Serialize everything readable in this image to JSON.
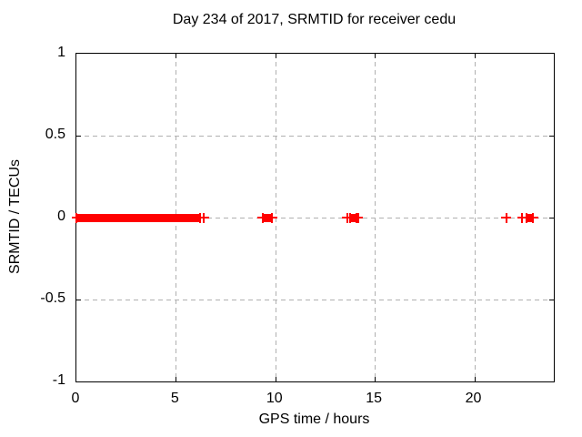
{
  "chart_data": {
    "type": "scatter",
    "title": "Day 234 of 2017, SRMTID for receiver cedu",
    "xlabel": "GPS time / hours",
    "ylabel": "SRMTID / TECUs",
    "xlim": [
      0,
      24
    ],
    "ylim": [
      -1,
      1
    ],
    "grid": true,
    "legend": "none",
    "grid_color": "#b0b0b0",
    "axis_color": "#000000",
    "background_color": "#ffffff",
    "xticks": [
      {
        "value": 0,
        "label": "0"
      },
      {
        "value": 5,
        "label": "5"
      },
      {
        "value": 10,
        "label": "10"
      },
      {
        "value": 15,
        "label": "15"
      },
      {
        "value": 20,
        "label": "20"
      }
    ],
    "yticks": [
      {
        "value": 1,
        "label": "1"
      },
      {
        "value": 0.5,
        "label": "0.5"
      },
      {
        "value": 0,
        "label": "0"
      },
      {
        "value": -0.5,
        "label": "-0.5"
      },
      {
        "value": -1,
        "label": "-1"
      }
    ],
    "series": [
      {
        "name": "SRMTID",
        "marker": "plus",
        "color": "#ff0000",
        "y_value": 0,
        "bands": [
          [
            0.0,
            6.2
          ],
          [
            9.35,
            9.85
          ],
          [
            13.75,
            14.1
          ],
          [
            22.65,
            22.95
          ]
        ],
        "points": [
          6.4,
          13.6,
          14.15,
          21.6,
          22.4
        ]
      }
    ]
  }
}
